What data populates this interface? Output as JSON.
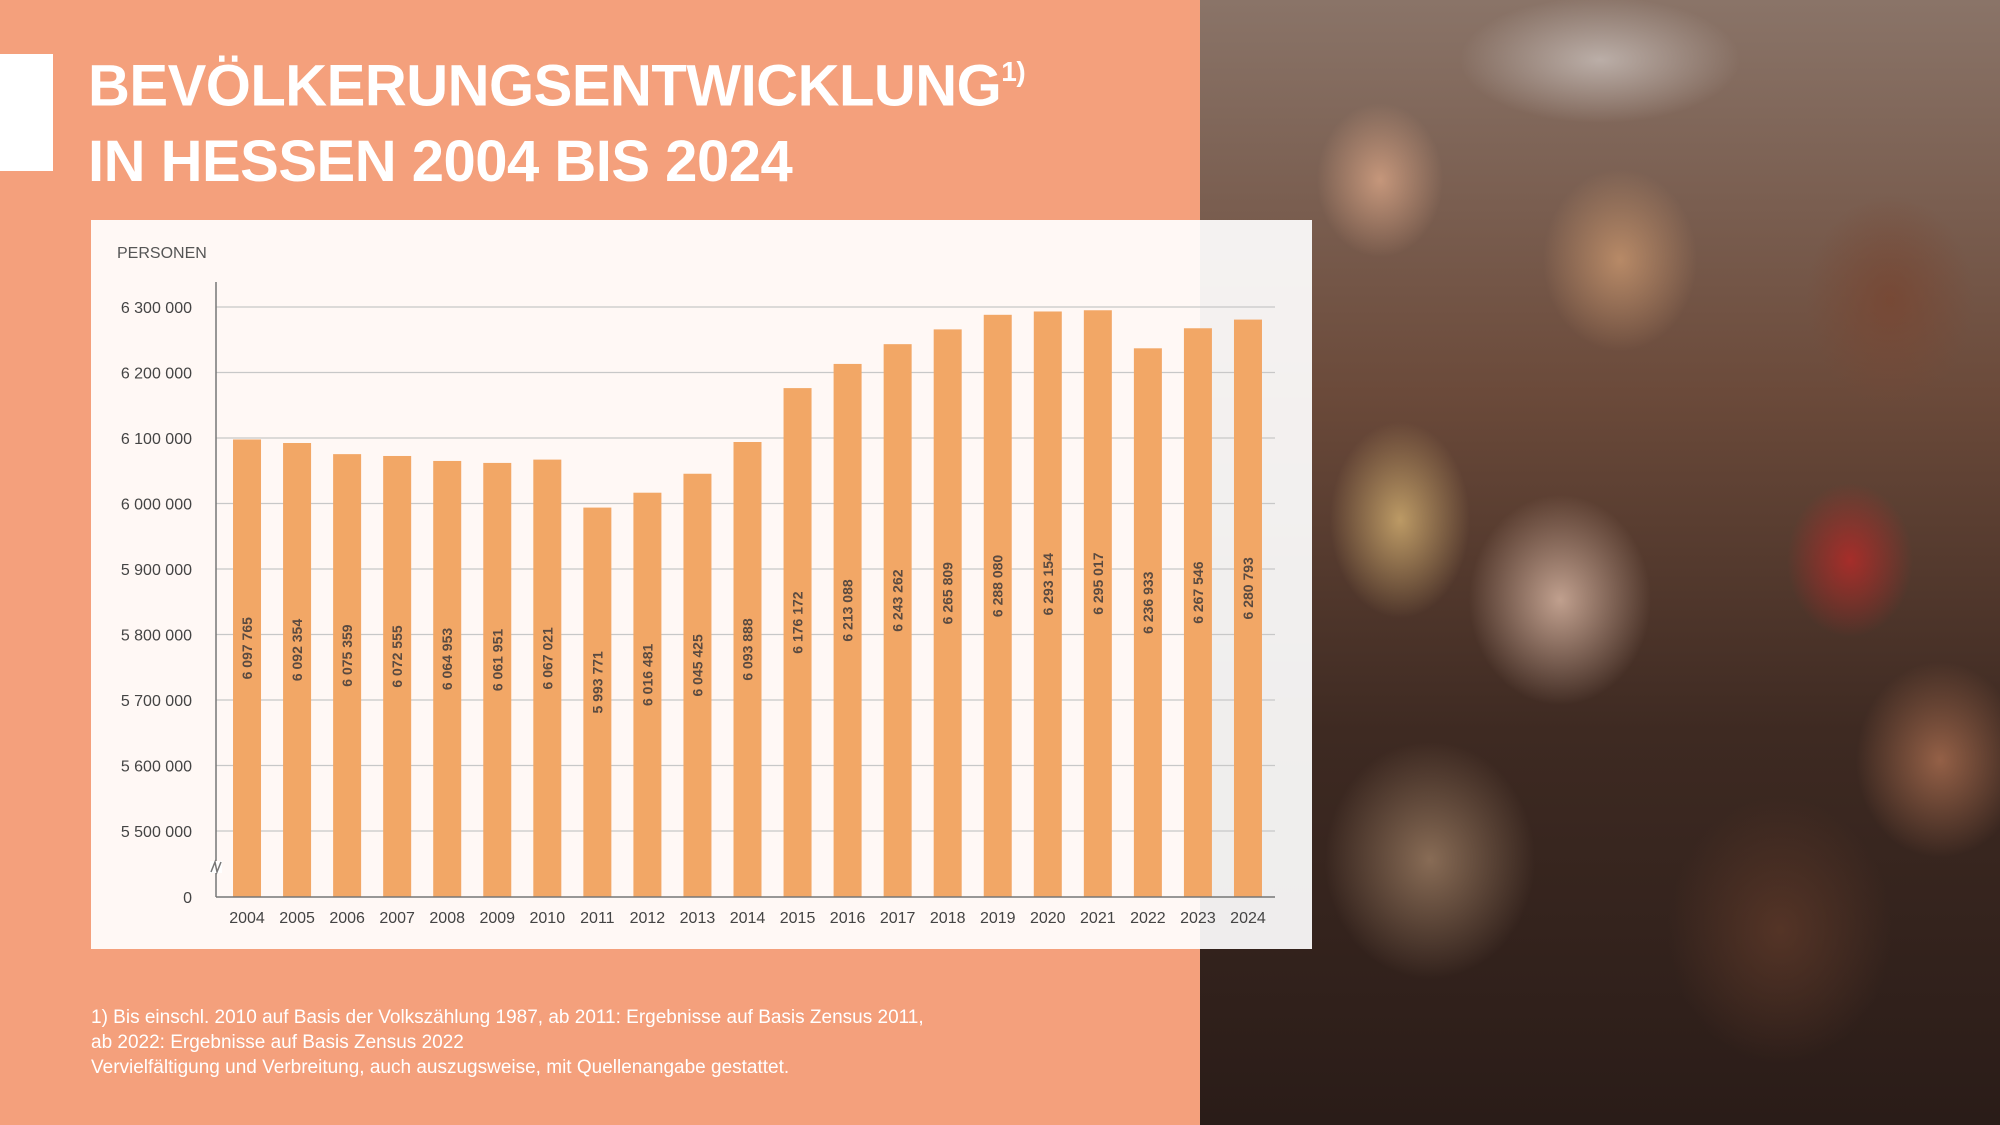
{
  "title": {
    "line1": "BEVÖLKERUNGSENTWICKLUNG",
    "superscript": "1)",
    "line2": "IN HESSEN 2004 BIS 2024"
  },
  "colors": {
    "background": "#f4a07c",
    "bar": "#f2a766",
    "title": "#ffffff"
  },
  "chart_data": {
    "type": "bar",
    "ylabel": "PERSONEN",
    "categories": [
      "2004",
      "2005",
      "2006",
      "2007",
      "2008",
      "2009",
      "2010",
      "2011",
      "2012",
      "2013",
      "2014",
      "2015",
      "2016",
      "2017",
      "2018",
      "2019",
      "2020",
      "2021",
      "2022",
      "2023",
      "2024"
    ],
    "values": [
      6097765,
      6092354,
      6075359,
      6072555,
      6064953,
      6061951,
      6067021,
      5993771,
      6016481,
      6045425,
      6093888,
      6176172,
      6213088,
      6243262,
      6265809,
      6288080,
      6293154,
      6295017,
      6236933,
      6267546,
      6280793
    ],
    "value_labels": [
      "6 097 765",
      "6 092 354",
      "6 075 359",
      "6 072 555",
      "6 064 953",
      "6 061 951",
      "6 067 021",
      "5 993 771",
      "6 016 481",
      "6 045 425",
      "6 093 888",
      "6 176 172",
      "6 213 088",
      "6 243 262",
      "6 265 809",
      "6 288 080",
      "6 293 154",
      "6 295 017",
      "6 236 933",
      "6 267 546",
      "6 280 793"
    ],
    "ylim": [
      5400000,
      6300000
    ],
    "y_ticks": [
      0,
      5500000,
      5600000,
      5700000,
      5800000,
      5900000,
      6000000,
      6100000,
      6200000,
      6300000
    ],
    "y_tick_labels": [
      "0",
      "5 500 000",
      "5 600 000",
      "5 700 000",
      "5 800 000",
      "5 900 000",
      "6 000 000",
      "6 100 000",
      "6 200 000",
      "6 300 000"
    ],
    "axis_break": true,
    "grid": true
  },
  "footnote": {
    "line1": "1) Bis einschl. 2010 auf Basis der Volkszählung 1987, ab 2011: Ergebnisse auf Basis Zensus 2011,",
    "line2": "ab 2022: Ergebnisse auf Basis Zensus 2022",
    "line3": "Vervielfältigung und Verbreitung, auch auszugsweise, mit Quellenangabe gestattet."
  }
}
